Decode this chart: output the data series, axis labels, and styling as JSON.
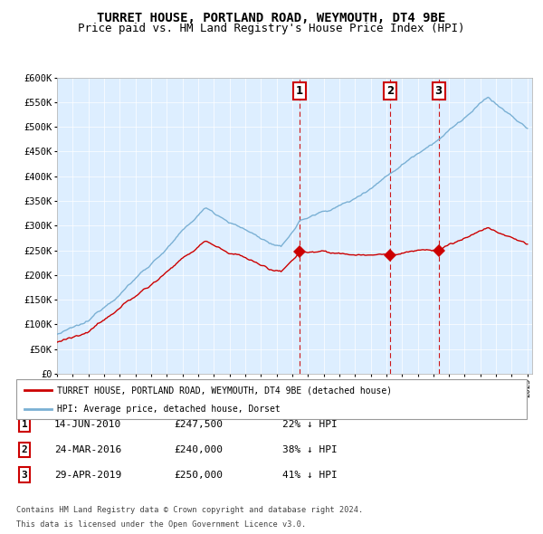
{
  "title": "TURRET HOUSE, PORTLAND ROAD, WEYMOUTH, DT4 9BE",
  "subtitle": "Price paid vs. HM Land Registry's House Price Index (HPI)",
  "title_fontsize": 10,
  "subtitle_fontsize": 9,
  "background_color": "#ffffff",
  "plot_bg_color": "#ddeeff",
  "hpi_color": "#7ab0d4",
  "price_color": "#cc0000",
  "marker_color": "#cc0000",
  "dashed_line_color": "#cc0000",
  "ylim": [
    0,
    600000
  ],
  "ytick_values": [
    0,
    50000,
    100000,
    150000,
    200000,
    250000,
    300000,
    350000,
    400000,
    450000,
    500000,
    550000,
    600000
  ],
  "ytick_labels": [
    "£0",
    "£50K",
    "£100K",
    "£150K",
    "£200K",
    "£250K",
    "£300K",
    "£350K",
    "£400K",
    "£450K",
    "£500K",
    "£550K",
    "£600K"
  ],
  "sales": [
    {
      "label": "1",
      "date": "14-JUN-2010",
      "price": 247500,
      "pct": "22%",
      "year": 2010.46
    },
    {
      "label": "2",
      "date": "24-MAR-2016",
      "price": 240000,
      "pct": "38%",
      "year": 2016.23
    },
    {
      "label": "3",
      "date": "29-APR-2019",
      "price": 250000,
      "pct": "41%",
      "year": 2019.33
    }
  ],
  "legend_line1": "TURRET HOUSE, PORTLAND ROAD, WEYMOUTH, DT4 9BE (detached house)",
  "legend_line2": "HPI: Average price, detached house, Dorset",
  "footer1": "Contains HM Land Registry data © Crown copyright and database right 2024.",
  "footer2": "This data is licensed under the Open Government Licence v3.0.",
  "x_start_year": 1995,
  "x_end_year": 2025
}
